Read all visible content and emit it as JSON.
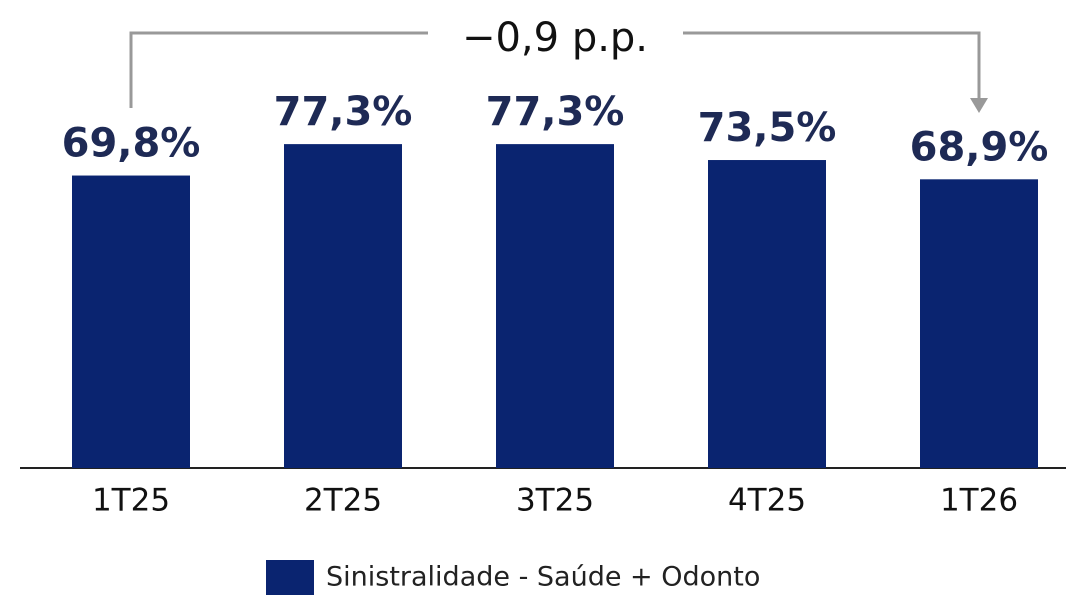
{
  "chart_data": {
    "type": "bar",
    "annotation": "−0,9 p.p.",
    "categories": [
      "1T25",
      "2T25",
      "3T25",
      "4T25",
      "1T26"
    ],
    "series": [
      {
        "name": "Sinistralidade - Saúde + Odonto",
        "color": "#0a2470",
        "values": [
          69.8,
          77.3,
          77.3,
          73.5,
          68.9
        ],
        "value_labels": [
          "69,8%",
          "77,3%",
          "77,3%",
          "73,5%",
          "68,9%"
        ]
      }
    ],
    "ylim": [
      0,
      100
    ],
    "legend": "bottom"
  }
}
